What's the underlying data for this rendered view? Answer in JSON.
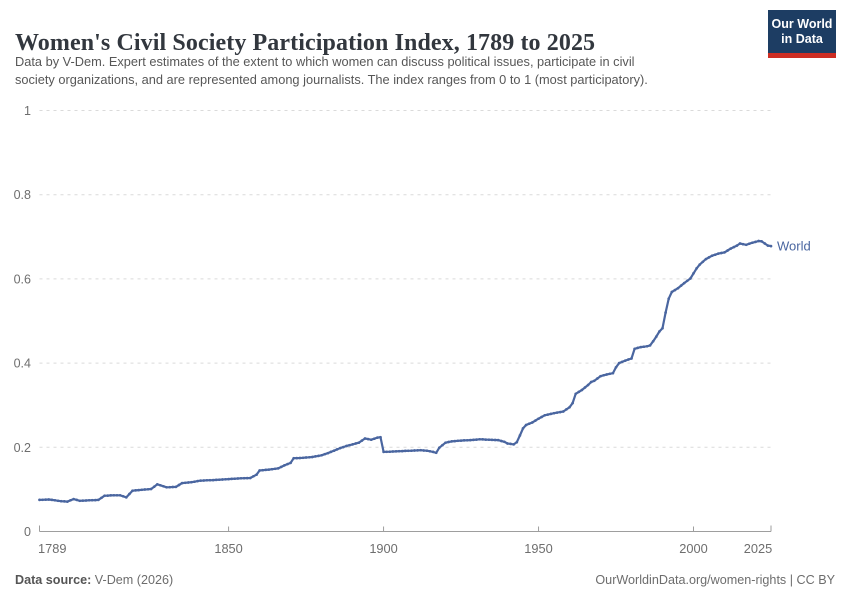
{
  "header": {
    "title": "Women's Civil Society Participation Index, 1789 to 2025",
    "subtitle_line1": "Data by V-Dem. Expert estimates of the extent to which women can discuss political issues, participate in civil",
    "subtitle_line2": "society organizations, and are represented among journalists. The index ranges from 0 to 1 (most participatory).",
    "logo": {
      "line1": "Our World",
      "line2": "in Data",
      "bg_color": "#1d3d63",
      "accent_color": "#cd2d23"
    }
  },
  "footer": {
    "source_label": "Data source:",
    "source_value": " V-Dem (2026)",
    "credit": "OurWorldinData.org/women-rights | CC BY"
  },
  "colors": {
    "title": "#32373e",
    "subtitle": "#575757",
    "axis_line": "#9e9e9e",
    "tick_label": "#6e6e6e",
    "gridline": "#dadada",
    "series_line": "#4a66a0"
  },
  "chart_data": {
    "type": "line",
    "title": "Women's Civil Society Participation Index, 1789 to 2025",
    "xlabel": "",
    "ylabel": "",
    "xlim": [
      1789,
      2025
    ],
    "ylim": [
      0,
      1
    ],
    "x_ticks": [
      1789,
      1850,
      1900,
      1950,
      2000,
      2025
    ],
    "y_ticks": [
      0,
      0.2,
      0.4,
      0.6,
      0.8,
      1
    ],
    "grid": "horizontal-dashed",
    "legend": "end-of-line-label",
    "series": [
      {
        "name": "World",
        "color": "#4a66a0",
        "points": [
          [
            1789,
            0.075
          ],
          [
            1792,
            0.076
          ],
          [
            1794,
            0.074
          ],
          [
            1796,
            0.072
          ],
          [
            1798,
            0.071
          ],
          [
            1800,
            0.077
          ],
          [
            1802,
            0.073
          ],
          [
            1805,
            0.074
          ],
          [
            1808,
            0.075
          ],
          [
            1810,
            0.085
          ],
          [
            1813,
            0.086
          ],
          [
            1815,
            0.086
          ],
          [
            1817,
            0.081
          ],
          [
            1819,
            0.097
          ],
          [
            1822,
            0.099
          ],
          [
            1825,
            0.101
          ],
          [
            1827,
            0.112
          ],
          [
            1830,
            0.105
          ],
          [
            1833,
            0.106
          ],
          [
            1835,
            0.115
          ],
          [
            1838,
            0.117
          ],
          [
            1841,
            0.121
          ],
          [
            1845,
            0.122
          ],
          [
            1849,
            0.124
          ],
          [
            1853,
            0.126
          ],
          [
            1857,
            0.127
          ],
          [
            1859,
            0.135
          ],
          [
            1860,
            0.145
          ],
          [
            1863,
            0.147
          ],
          [
            1866,
            0.15
          ],
          [
            1868,
            0.157
          ],
          [
            1870,
            0.163
          ],
          [
            1871,
            0.174
          ],
          [
            1874,
            0.175
          ],
          [
            1877,
            0.177
          ],
          [
            1880,
            0.181
          ],
          [
            1882,
            0.186
          ],
          [
            1884,
            0.192
          ],
          [
            1886,
            0.198
          ],
          [
            1888,
            0.203
          ],
          [
            1890,
            0.207
          ],
          [
            1892,
            0.211
          ],
          [
            1894,
            0.221
          ],
          [
            1896,
            0.218
          ],
          [
            1898,
            0.223
          ],
          [
            1899,
            0.224
          ],
          [
            1900,
            0.189
          ],
          [
            1903,
            0.19
          ],
          [
            1906,
            0.191
          ],
          [
            1909,
            0.192
          ],
          [
            1912,
            0.193
          ],
          [
            1914,
            0.192
          ],
          [
            1916,
            0.189
          ],
          [
            1917,
            0.187
          ],
          [
            1918,
            0.199
          ],
          [
            1920,
            0.211
          ],
          [
            1922,
            0.214
          ],
          [
            1925,
            0.216
          ],
          [
            1928,
            0.217
          ],
          [
            1931,
            0.219
          ],
          [
            1934,
            0.218
          ],
          [
            1937,
            0.217
          ],
          [
            1939,
            0.213
          ],
          [
            1940,
            0.209
          ],
          [
            1942,
            0.207
          ],
          [
            1943,
            0.212
          ],
          [
            1944,
            0.228
          ],
          [
            1945,
            0.245
          ],
          [
            1946,
            0.253
          ],
          [
            1948,
            0.259
          ],
          [
            1950,
            0.268
          ],
          [
            1952,
            0.276
          ],
          [
            1955,
            0.281
          ],
          [
            1958,
            0.285
          ],
          [
            1960,
            0.295
          ],
          [
            1961,
            0.305
          ],
          [
            1962,
            0.327
          ],
          [
            1964,
            0.336
          ],
          [
            1966,
            0.348
          ],
          [
            1967,
            0.355
          ],
          [
            1968,
            0.358
          ],
          [
            1970,
            0.369
          ],
          [
            1972,
            0.373
          ],
          [
            1974,
            0.376
          ],
          [
            1975,
            0.39
          ],
          [
            1976,
            0.4
          ],
          [
            1978,
            0.406
          ],
          [
            1980,
            0.411
          ],
          [
            1981,
            0.434
          ],
          [
            1983,
            0.438
          ],
          [
            1985,
            0.44
          ],
          [
            1986,
            0.442
          ],
          [
            1987,
            0.452
          ],
          [
            1988,
            0.463
          ],
          [
            1989,
            0.475
          ],
          [
            1990,
            0.483
          ],
          [
            1991,
            0.52
          ],
          [
            1992,
            0.553
          ],
          [
            1993,
            0.569
          ],
          [
            1995,
            0.578
          ],
          [
            1997,
            0.59
          ],
          [
            1999,
            0.601
          ],
          [
            2001,
            0.625
          ],
          [
            2002,
            0.634
          ],
          [
            2004,
            0.647
          ],
          [
            2006,
            0.655
          ],
          [
            2008,
            0.66
          ],
          [
            2010,
            0.663
          ],
          [
            2012,
            0.672
          ],
          [
            2014,
            0.679
          ],
          [
            2015,
            0.684
          ],
          [
            2017,
            0.681
          ],
          [
            2019,
            0.686
          ],
          [
            2021,
            0.69
          ],
          [
            2022,
            0.689
          ],
          [
            2023,
            0.684
          ],
          [
            2024,
            0.679
          ],
          [
            2025,
            0.678
          ]
        ]
      }
    ]
  }
}
